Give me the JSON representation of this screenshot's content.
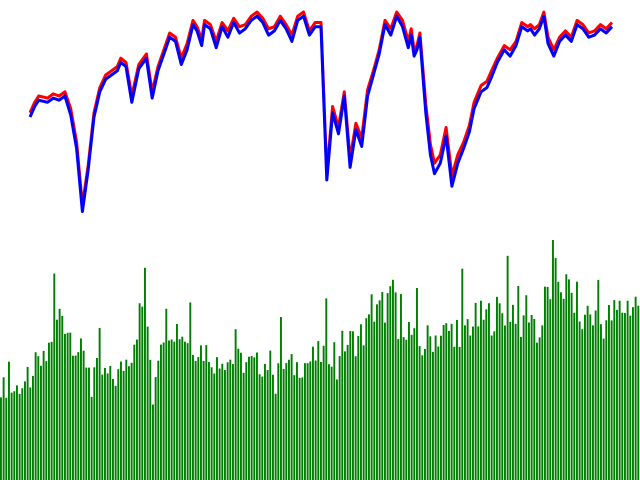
{
  "colors": {
    "background": "#ffffff",
    "series_a": "#ff0000",
    "series_b": "#0000ff",
    "volume": "#008000"
  },
  "chart_data": [
    {
      "type": "line",
      "title": "",
      "xlabel": "",
      "ylabel": "",
      "axes_visible": false,
      "grid": false,
      "legend": "none",
      "ylim": [
        0,
        100
      ],
      "keypoints_x": [
        0,
        0.8,
        1.5,
        3,
        4,
        5,
        6,
        7,
        8,
        9,
        10,
        11,
        12,
        13,
        14,
        15,
        15.6,
        16.5,
        17.5,
        18.7,
        20,
        21,
        22,
        23,
        24,
        25,
        26,
        27,
        28,
        28.7,
        29.5,
        30,
        31,
        32,
        33,
        34,
        35,
        36,
        37,
        38,
        39,
        40,
        41,
        42,
        43,
        44,
        45,
        46,
        47,
        48,
        49,
        50,
        51,
        52,
        53,
        54,
        55,
        56,
        57,
        58,
        59,
        60,
        61,
        62,
        63,
        64,
        65,
        65.5,
        66,
        66.5,
        67,
        68,
        68.8,
        69.5,
        70.5,
        71.5,
        72.5,
        73.5,
        74.5,
        75.5,
        76.3,
        77.5,
        78.5,
        79.3,
        80.3,
        81.5,
        82.5,
        83.5,
        84.5,
        85.5,
        86,
        86.7,
        87.5,
        88.3,
        89,
        90,
        91,
        92,
        93,
        94,
        95,
        96,
        97,
        98,
        99,
        100
      ],
      "keypoints_series_a": [
        52,
        57,
        60,
        59,
        61,
        60,
        62,
        54,
        38,
        8,
        27,
        52,
        64,
        70,
        72,
        74,
        78,
        76,
        60,
        75,
        80,
        62,
        74,
        82,
        90,
        88,
        78,
        85,
        96,
        93,
        87,
        96,
        94,
        86,
        95,
        91,
        97,
        93,
        94,
        98,
        100,
        97,
        92,
        93,
        98,
        94,
        89,
        98,
        100,
        91,
        95,
        95,
        23,
        55,
        45,
        62,
        30,
        47,
        40,
        63,
        72,
        82,
        96,
        92,
        100,
        96,
        86,
        92,
        82,
        84,
        90,
        56,
        37,
        28,
        32,
        45,
        22,
        32,
        38,
        46,
        57,
        65,
        67,
        72,
        78,
        84,
        82,
        86,
        95,
        93,
        94,
        92,
        94,
        100,
        88,
        82,
        88,
        91,
        88,
        96,
        94,
        90,
        91,
        94,
        92,
        95
      ],
      "keypoints_series_b": [
        50,
        55,
        58,
        57,
        59,
        58,
        60,
        51,
        35,
        5,
        25,
        50,
        62,
        68,
        70,
        72,
        76,
        74,
        57,
        73,
        78,
        59,
        72,
        80,
        88,
        86,
        75,
        82,
        94,
        91,
        84,
        94,
        92,
        83,
        93,
        88,
        95,
        90,
        92,
        96,
        98,
        95,
        89,
        91,
        96,
        92,
        86,
        96,
        98,
        89,
        93,
        93,
        20,
        52,
        42,
        60,
        26,
        44,
        36,
        60,
        70,
        80,
        94,
        89,
        98,
        93,
        83,
        89,
        79,
        82,
        88,
        52,
        32,
        23,
        28,
        41,
        17,
        28,
        35,
        43,
        54,
        62,
        64,
        69,
        76,
        82,
        79,
        84,
        93,
        91,
        92,
        89,
        92,
        98,
        85,
        79,
        86,
        89,
        86,
        94,
        92,
        88,
        89,
        92,
        90,
        93
      ]
    },
    {
      "type": "bar",
      "title": "",
      "xlabel": "",
      "ylabel": "",
      "axes_visible": false,
      "grid": false,
      "legend": "none",
      "ylim": [
        0,
        100
      ],
      "keypoints_x": [
        0,
        2,
        4,
        5,
        7,
        8,
        9.5,
        10.5,
        12,
        14,
        16,
        18,
        20.5,
        21.5,
        22.5,
        23,
        24,
        25,
        26,
        28,
        30,
        32,
        35,
        38,
        40,
        43,
        46,
        48,
        50,
        52,
        54,
        56,
        58,
        60,
        62,
        63,
        64,
        65,
        66,
        67,
        69,
        71,
        73,
        75,
        77,
        79,
        81,
        83,
        84.5,
        85.5,
        86.5,
        87.5,
        88.5,
        90,
        92,
        94,
        96,
        98,
        100
      ],
      "keypoints_values": [
        40,
        38,
        42,
        48,
        50,
        62,
        72,
        65,
        56,
        48,
        45,
        43,
        55,
        68,
        75,
        60,
        40,
        62,
        68,
        64,
        58,
        55,
        52,
        50,
        49,
        50,
        48,
        50,
        53,
        55,
        58,
        60,
        66,
        74,
        78,
        70,
        64,
        58,
        56,
        60,
        62,
        64,
        66,
        68,
        70,
        72,
        74,
        73,
        60,
        78,
        83,
        86,
        82,
        76,
        72,
        66,
        70,
        74,
        76
      ],
      "bar_count": 240
    }
  ]
}
